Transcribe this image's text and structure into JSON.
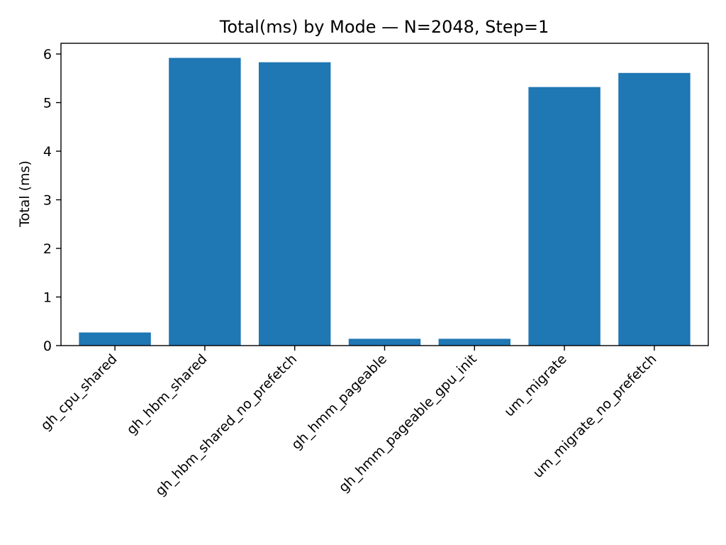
{
  "chart_data": {
    "type": "bar",
    "title": "Total(ms) by Mode — N=2048, Step=1",
    "xlabel": "",
    "ylabel": "Total (ms)",
    "categories": [
      "gh_cpu_shared",
      "gh_hbm_shared",
      "gh_hbm_shared_no_prefetch",
      "gh_hmm_pageable",
      "gh_hmm_pageable_gpu_init",
      "um_migrate",
      "um_migrate_no_prefetch"
    ],
    "values": [
      0.27,
      5.92,
      5.83,
      0.14,
      0.14,
      5.32,
      5.61
    ],
    "ylim": [
      0,
      6.22
    ],
    "yticks": [
      0,
      1,
      2,
      3,
      4,
      5,
      6
    ],
    "bar_color": "#1f77b4",
    "grid": false,
    "legend": "none"
  }
}
